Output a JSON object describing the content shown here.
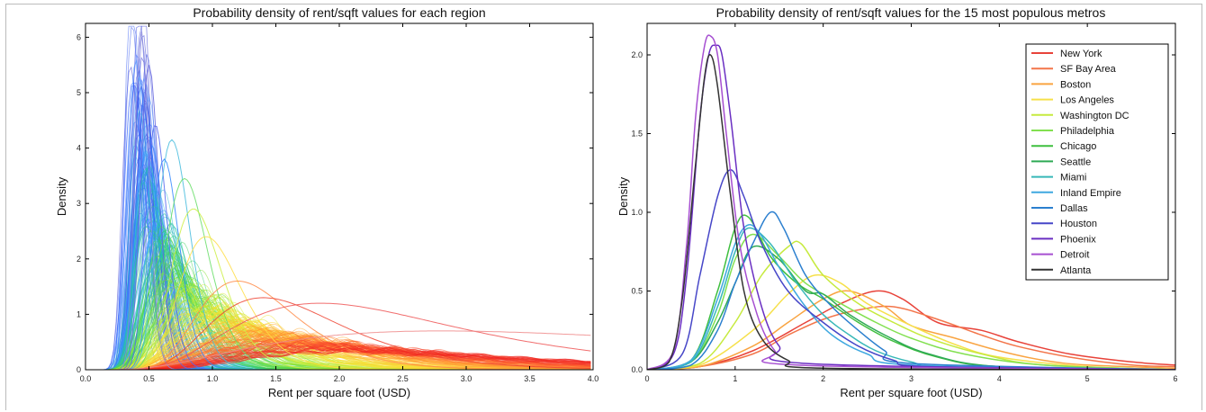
{
  "chart_data": [
    {
      "type": "line",
      "title": "Probability density of rent/sqft values for each region",
      "xlabel": "Rent per square foot (USD)",
      "ylabel": "Density",
      "xlim": [
        0.0,
        4.0
      ],
      "ylim": [
        0,
        6.25
      ],
      "xticks": [
        "0.0",
        "0.5",
        "1.0",
        "1.5",
        "2.0",
        "2.5",
        "3.0",
        "3.5",
        "4.0"
      ],
      "yticks": [
        "0",
        "1",
        "2",
        "3",
        "4",
        "5",
        "6"
      ],
      "grid": false,
      "legend": "none",
      "colormap": [
        "#3333cc",
        "#3366ff",
        "#33aaff",
        "#22cc88",
        "#66dd33",
        "#ccee33",
        "#ffdd33",
        "#ffaa33",
        "#ff6633",
        "#ee2222"
      ],
      "series_note_count": 300,
      "series": [
        {
          "peak_x": 0.44,
          "peak_y": 6.1,
          "color": "#8888dd"
        },
        {
          "peak_x": 0.5,
          "peak_y": 5.5,
          "color": "#6666dd"
        },
        {
          "peak_x": 0.55,
          "peak_y": 4.4,
          "color": "#5566ee"
        },
        {
          "peak_x": 0.68,
          "peak_y": 4.15,
          "color": "#44bbdd"
        },
        {
          "peak_x": 0.62,
          "peak_y": 3.8,
          "color": "#3388ff"
        },
        {
          "peak_x": 0.78,
          "peak_y": 3.45,
          "color": "#66dd66"
        },
        {
          "peak_x": 0.85,
          "peak_y": 2.9,
          "color": "#ccee44"
        },
        {
          "peak_x": 0.95,
          "peak_y": 2.4,
          "color": "#ffdd44"
        },
        {
          "peak_x": 1.2,
          "peak_y": 1.6,
          "color": "#ff8844"
        },
        {
          "peak_x": 1.4,
          "peak_y": 1.3,
          "color": "#ee4433"
        },
        {
          "peak_x": 1.85,
          "peak_y": 1.2,
          "color": "#ee5555"
        },
        {
          "peak_x": 2.8,
          "peak_y": 0.7,
          "color": "#ee8888"
        }
      ]
    },
    {
      "type": "line",
      "title": "Probability density of rent/sqft values for the 15 most populous metros",
      "xlabel": "Rent per square foot (USD)",
      "ylabel": "Density",
      "xlim": [
        0,
        6
      ],
      "ylim": [
        0,
        2.2
      ],
      "xticks": [
        "0",
        "1",
        "2",
        "3",
        "4",
        "5",
        "6"
      ],
      "yticks": [
        "0.0",
        "0.5",
        "1.0",
        "1.5",
        "2.0"
      ],
      "grid": false,
      "legend": "top-right",
      "series": [
        {
          "name": "New York",
          "color": "#e8433a",
          "x": [
            0,
            0.6,
            1.2,
            1.8,
            2.2,
            2.6,
            2.9,
            3.3,
            3.8,
            4.2,
            4.8,
            5.5,
            6
          ],
          "y": [
            0,
            0.02,
            0.12,
            0.3,
            0.42,
            0.5,
            0.45,
            0.3,
            0.25,
            0.18,
            0.1,
            0.05,
            0.03
          ]
        },
        {
          "name": "SF Bay Area",
          "color": "#f3754a",
          "x": [
            0,
            0.6,
            1.2,
            1.6,
            2.0,
            2.4,
            2.8,
            3.3,
            3.8,
            4.2,
            4.8,
            5.5,
            6
          ],
          "y": [
            0,
            0.02,
            0.1,
            0.22,
            0.32,
            0.38,
            0.4,
            0.32,
            0.22,
            0.15,
            0.08,
            0.03,
            0.02
          ]
        },
        {
          "name": "Boston",
          "color": "#f9a441",
          "x": [
            0,
            0.6,
            1.2,
            1.6,
            2.0,
            2.3,
            2.7,
            3.0,
            3.5,
            4.0,
            4.5,
            5.0,
            6
          ],
          "y": [
            0,
            0.02,
            0.15,
            0.3,
            0.45,
            0.5,
            0.4,
            0.28,
            0.2,
            0.12,
            0.06,
            0.03,
            0.01
          ]
        },
        {
          "name": "Los Angeles",
          "color": "#f6e04a",
          "x": [
            0,
            0.6,
            1.2,
            1.6,
            1.9,
            2.2,
            2.5,
            3.0,
            3.5,
            4.0,
            5.0,
            6
          ],
          "y": [
            0,
            0.03,
            0.25,
            0.48,
            0.6,
            0.55,
            0.42,
            0.28,
            0.16,
            0.08,
            0.02,
            0.0
          ]
        },
        {
          "name": "Washington DC",
          "color": "#c6ea3e",
          "x": [
            0,
            0.6,
            1.0,
            1.3,
            1.6,
            1.75,
            2.0,
            2.4,
            2.8,
            3.2,
            3.8,
            4.5,
            6
          ],
          "y": [
            0,
            0.04,
            0.3,
            0.6,
            0.78,
            0.8,
            0.6,
            0.42,
            0.3,
            0.2,
            0.1,
            0.03,
            0.0
          ]
        },
        {
          "name": "Philadelphia",
          "color": "#82e050",
          "x": [
            0,
            0.5,
            0.8,
            1.0,
            1.2,
            1.5,
            1.8,
            2.2,
            2.6,
            3.0,
            3.6,
            4.5,
            6
          ],
          "y": [
            0,
            0.05,
            0.35,
            0.7,
            0.86,
            0.72,
            0.55,
            0.42,
            0.3,
            0.2,
            0.1,
            0.03,
            0.0
          ]
        },
        {
          "name": "Chicago",
          "color": "#3fbf3f",
          "x": [
            0,
            0.5,
            0.8,
            1.0,
            1.15,
            1.4,
            1.7,
            2.0,
            2.4,
            2.8,
            3.3,
            4.0,
            6
          ],
          "y": [
            0,
            0.06,
            0.5,
            0.9,
            0.97,
            0.72,
            0.55,
            0.45,
            0.3,
            0.18,
            0.08,
            0.02,
            0.0
          ]
        },
        {
          "name": "Seattle",
          "color": "#2faa55",
          "x": [
            0,
            0.5,
            0.8,
            1.0,
            1.2,
            1.5,
            1.8,
            2.0,
            2.3,
            2.7,
            3.2,
            4.0,
            6
          ],
          "y": [
            0,
            0.05,
            0.3,
            0.55,
            0.78,
            0.7,
            0.5,
            0.48,
            0.35,
            0.22,
            0.1,
            0.02,
            0.0
          ]
        },
        {
          "name": "Miami",
          "color": "#37b8b8",
          "x": [
            0,
            0.5,
            0.8,
            1.0,
            1.15,
            1.4,
            1.7,
            2.0,
            2.3,
            2.6,
            3.0,
            3.5,
            6
          ],
          "y": [
            0,
            0.05,
            0.4,
            0.75,
            0.9,
            0.8,
            0.55,
            0.35,
            0.22,
            0.12,
            0.05,
            0.01,
            0.0
          ]
        },
        {
          "name": "Inland Empire",
          "color": "#3fa8e0",
          "x": [
            0,
            0.5,
            0.8,
            1.0,
            1.15,
            1.3,
            1.5,
            1.8,
            2.1,
            2.5,
            3.0,
            6
          ],
          "y": [
            0,
            0.06,
            0.45,
            0.8,
            0.92,
            0.85,
            0.65,
            0.4,
            0.22,
            0.1,
            0.03,
            0.0
          ]
        },
        {
          "name": "Dallas",
          "color": "#2b7fcf",
          "x": [
            0,
            0.5,
            0.8,
            1.0,
            1.2,
            1.4,
            1.55,
            1.8,
            2.1,
            2.4,
            2.7,
            3.0,
            6
          ],
          "y": [
            0,
            0.03,
            0.25,
            0.55,
            0.8,
            1.0,
            0.9,
            0.6,
            0.4,
            0.25,
            0.12,
            0.04,
            0.0
          ]
        },
        {
          "name": "Houston",
          "color": "#4747c8",
          "x": [
            0,
            0.4,
            0.6,
            0.8,
            0.95,
            1.1,
            1.3,
            1.6,
            2.0,
            2.4,
            2.8,
            3.2,
            6
          ],
          "y": [
            0,
            0.1,
            0.6,
            1.1,
            1.27,
            1.1,
            0.8,
            0.5,
            0.3,
            0.15,
            0.06,
            0.02,
            0.0
          ]
        },
        {
          "name": "Phoenix",
          "color": "#6a2fc2",
          "x": [
            0,
            0.3,
            0.45,
            0.6,
            0.7,
            0.78,
            0.85,
            0.95,
            1.1,
            1.3,
            1.5,
            1.8,
            6
          ],
          "y": [
            0,
            0.1,
            0.6,
            1.6,
            2.0,
            2.06,
            2.0,
            1.6,
            0.9,
            0.4,
            0.15,
            0.04,
            0.0
          ]
        },
        {
          "name": "Detroit",
          "color": "#a64fd1",
          "x": [
            0,
            0.3,
            0.45,
            0.55,
            0.65,
            0.72,
            0.8,
            0.9,
            1.05,
            1.25,
            1.45,
            1.7,
            6
          ],
          "y": [
            0,
            0.12,
            0.8,
            1.6,
            2.05,
            2.12,
            2.0,
            1.5,
            0.8,
            0.35,
            0.12,
            0.03,
            0.0
          ]
        },
        {
          "name": "Atlanta",
          "color": "#333333",
          "x": [
            0,
            0.25,
            0.4,
            0.55,
            0.65,
            0.72,
            0.8,
            0.95,
            1.1,
            1.3,
            1.6,
            2.0,
            6
          ],
          "y": [
            0,
            0.05,
            0.45,
            1.3,
            1.85,
            2.0,
            1.8,
            1.1,
            0.5,
            0.2,
            0.06,
            0.01,
            0.0
          ]
        }
      ]
    }
  ]
}
